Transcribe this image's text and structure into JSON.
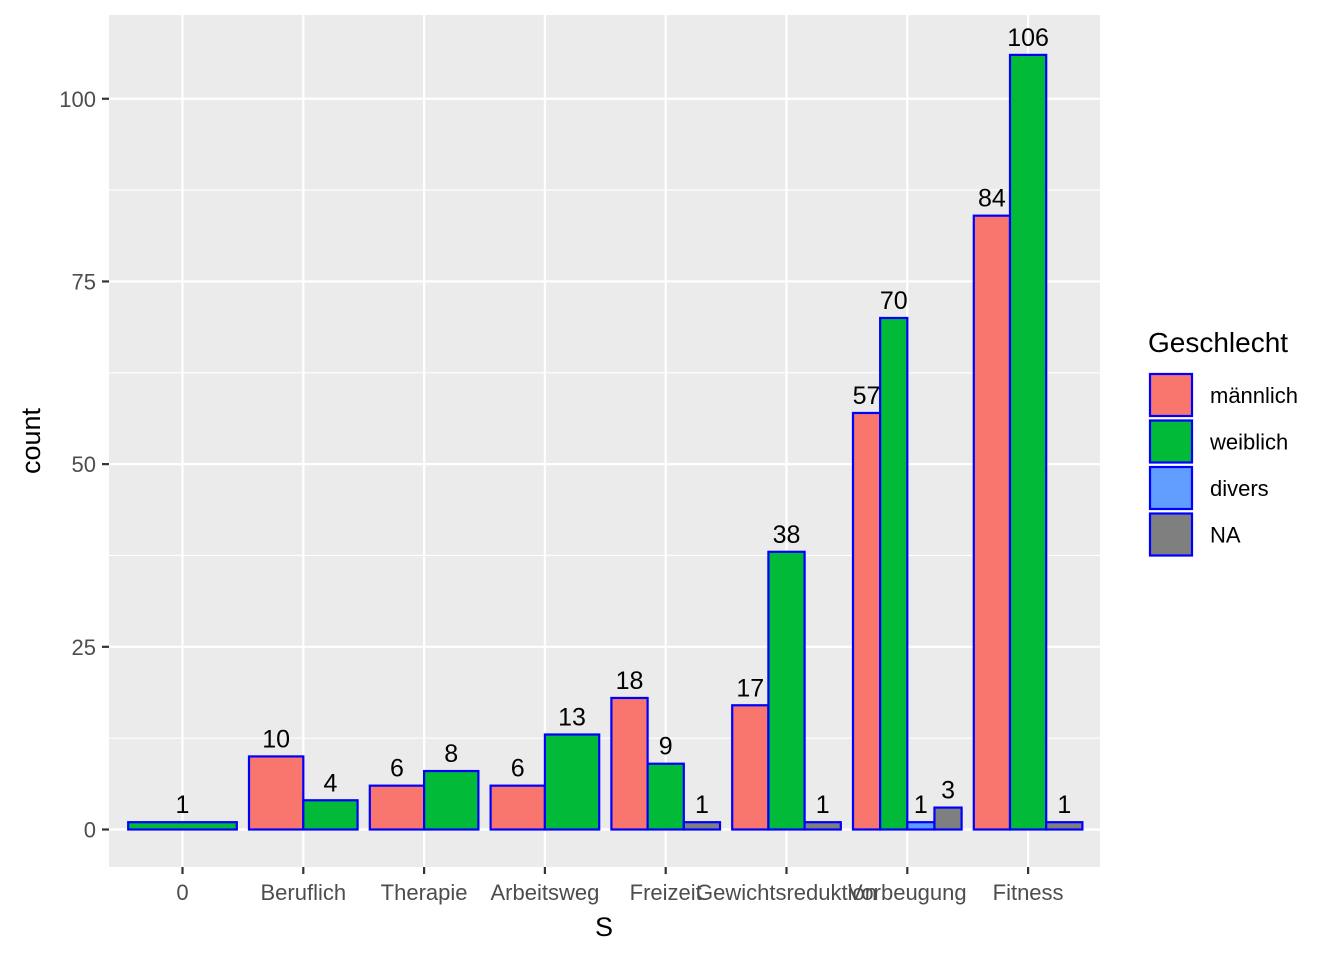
{
  "chart_data": {
    "type": "bar",
    "xlabel": "S",
    "ylabel": "count",
    "ylim": [
      0,
      110
    ],
    "yticks": [
      0,
      25,
      50,
      75,
      100
    ],
    "grid": true,
    "legend": {
      "title": "Geschlecht",
      "placement": "right",
      "entries": [
        "männlich",
        "weiblich",
        "divers",
        "NA"
      ]
    },
    "colors": {
      "männlich": "#F8766D",
      "weiblich": "#00BA38",
      "divers": "#619CFF",
      "NA": "#7F7F7F",
      "bar_outline": "#0000FF",
      "panel": "#EBEBEB",
      "grid": "#FFFFFF"
    },
    "categories": [
      "0",
      "Beruflich",
      "Therapie",
      "Arbeitsweg",
      "Freizeit",
      "Gewichtsreduktion",
      "Vorbeugung",
      "Fitness"
    ],
    "groups": [
      {
        "category": "0",
        "bars": [
          {
            "series": "weiblich",
            "value": 1
          }
        ]
      },
      {
        "category": "Beruflich",
        "bars": [
          {
            "series": "männlich",
            "value": 10
          },
          {
            "series": "weiblich",
            "value": 4
          }
        ]
      },
      {
        "category": "Therapie",
        "bars": [
          {
            "series": "männlich",
            "value": 6
          },
          {
            "series": "weiblich",
            "value": 8
          }
        ]
      },
      {
        "category": "Arbeitsweg",
        "bars": [
          {
            "series": "männlich",
            "value": 6
          },
          {
            "series": "weiblich",
            "value": 13
          }
        ]
      },
      {
        "category": "Freizeit",
        "bars": [
          {
            "series": "männlich",
            "value": 18
          },
          {
            "series": "weiblich",
            "value": 9
          },
          {
            "series": "NA",
            "value": 1
          }
        ]
      },
      {
        "category": "Gewichtsreduktion",
        "bars": [
          {
            "series": "männlich",
            "value": 17
          },
          {
            "series": "weiblich",
            "value": 38
          },
          {
            "series": "NA",
            "value": 1
          }
        ]
      },
      {
        "category": "Vorbeugung",
        "bars": [
          {
            "series": "männlich",
            "value": 57
          },
          {
            "series": "weiblich",
            "value": 70
          },
          {
            "series": "divers",
            "value": 1
          },
          {
            "series": "NA",
            "value": 3
          }
        ]
      },
      {
        "category": "Fitness",
        "bars": [
          {
            "series": "männlich",
            "value": 84
          },
          {
            "series": "weiblich",
            "value": 106
          },
          {
            "series": "NA",
            "value": 1
          }
        ]
      }
    ]
  }
}
